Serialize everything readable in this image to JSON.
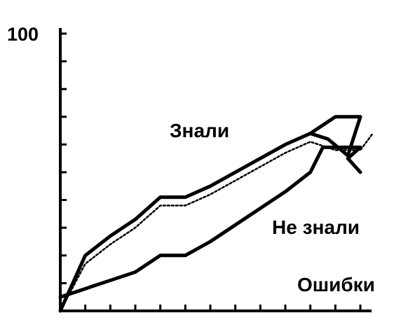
{
  "chart_data": {
    "type": "line",
    "title": "",
    "xlabel": "",
    "ylabel": "",
    "ylim": [
      0,
      100
    ],
    "xlim": [
      0,
      12
    ],
    "x_ticks": [
      0,
      1,
      2,
      3,
      4,
      5,
      6,
      7,
      8,
      9,
      10,
      11,
      12
    ],
    "y_ticks": [
      0,
      10,
      20,
      30,
      40,
      50,
      60,
      70,
      80,
      90,
      100
    ],
    "y_tick_labels": [
      {
        "value": 100,
        "label": "100"
      }
    ],
    "grid": false,
    "legend": "none",
    "annotations": [
      {
        "text": "Знали"
      },
      {
        "text": "Не знали"
      },
      {
        "text": "Ошибки"
      }
    ],
    "series": [
      {
        "style": "solid-thick",
        "color": "#000000",
        "points": [
          [
            0,
            0
          ],
          [
            1,
            20
          ],
          [
            2,
            27
          ],
          [
            3,
            33
          ],
          [
            4,
            41
          ],
          [
            5,
            41
          ],
          [
            6,
            45
          ],
          [
            7,
            50
          ],
          [
            8,
            55
          ],
          [
            9,
            60
          ],
          [
            10,
            64
          ],
          [
            11,
            70
          ],
          [
            12,
            70
          ],
          [
            11.5,
            56
          ],
          [
            10.7,
            62
          ],
          [
            10,
            64
          ]
        ]
      },
      {
        "style": "solid-thick",
        "color": "#000000",
        "points": [
          [
            0,
            5
          ],
          [
            1,
            8
          ],
          [
            2,
            11
          ],
          [
            3,
            14
          ],
          [
            4,
            20
          ],
          [
            5,
            20
          ],
          [
            6,
            25
          ],
          [
            7,
            31
          ],
          [
            8,
            37
          ],
          [
            9,
            43
          ],
          [
            10,
            50
          ],
          [
            10.5,
            59
          ],
          [
            12,
            59
          ],
          [
            11.5,
            55
          ],
          [
            12,
            50
          ]
        ]
      },
      {
        "style": "dotted",
        "color": "#000000",
        "points": [
          [
            0,
            0
          ],
          [
            1,
            17
          ],
          [
            2,
            24
          ],
          [
            3,
            30
          ],
          [
            4,
            38
          ],
          [
            5,
            38
          ],
          [
            6,
            42
          ],
          [
            7,
            47
          ],
          [
            8,
            52
          ],
          [
            9,
            57
          ],
          [
            10,
            61
          ],
          [
            11,
            58
          ],
          [
            12,
            58
          ],
          [
            12.5,
            64
          ]
        ]
      }
    ]
  }
}
